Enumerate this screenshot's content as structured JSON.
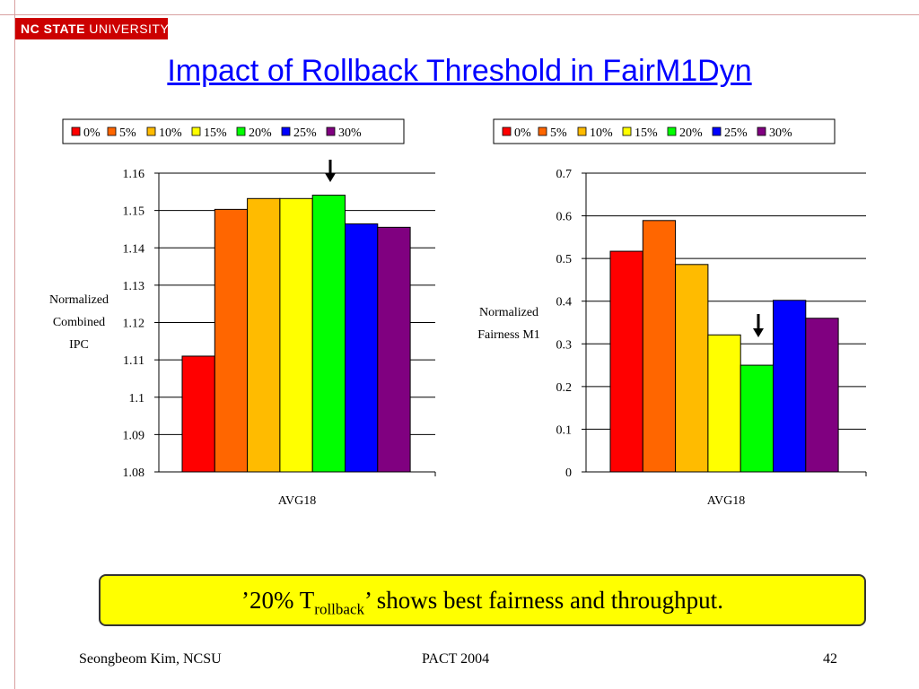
{
  "header": {
    "logo_bold": "NC STATE",
    "logo_rest": " UNIVERSITY",
    "title": "Impact of Rollback Threshold in FairM1Dyn"
  },
  "legend_labels": [
    "0%",
    "5%",
    "10%",
    "15%",
    "20%",
    "25%",
    "30%"
  ],
  "series_colors": [
    "#ff0000",
    "#ff6600",
    "#ffbb00",
    "#ffff00",
    "#00ff00",
    "#0000ff",
    "#800080"
  ],
  "chart_data": [
    {
      "type": "bar",
      "categories": [
        "AVG18"
      ],
      "series": [
        {
          "name": "0%",
          "values": [
            1.111
          ]
        },
        {
          "name": "5%",
          "values": [
            1.1503
          ]
        },
        {
          "name": "10%",
          "values": [
            1.1532
          ]
        },
        {
          "name": "15%",
          "values": [
            1.1532
          ]
        },
        {
          "name": "20%",
          "values": [
            1.1541
          ]
        },
        {
          "name": "25%",
          "values": [
            1.1464
          ]
        },
        {
          "name": "30%",
          "values": [
            1.1455
          ]
        }
      ],
      "ylabel": [
        "Normalized",
        "Combined",
        "IPC"
      ],
      "ylim": [
        1.08,
        1.16
      ],
      "yticks": [
        "1.08",
        "1.09",
        "1.1",
        "1.11",
        "1.12",
        "1.13",
        "1.14",
        "1.15",
        "1.16"
      ],
      "grid": true,
      "legend": "top",
      "highlight_series": "20%"
    },
    {
      "type": "bar",
      "categories": [
        "AVG18"
      ],
      "series": [
        {
          "name": "0%",
          "values": [
            0.517
          ]
        },
        {
          "name": "5%",
          "values": [
            0.589
          ]
        },
        {
          "name": "10%",
          "values": [
            0.486
          ]
        },
        {
          "name": "15%",
          "values": [
            0.321
          ]
        },
        {
          "name": "20%",
          "values": [
            0.25
          ]
        },
        {
          "name": "25%",
          "values": [
            0.402
          ]
        },
        {
          "name": "30%",
          "values": [
            0.36
          ]
        }
      ],
      "ylabel": [
        "Normalized",
        "Fairness M1"
      ],
      "ylim": [
        0,
        0.7
      ],
      "yticks": [
        "0",
        "0.1",
        "0.2",
        "0.3",
        "0.4",
        "0.5",
        "0.6",
        "0.7"
      ],
      "grid": true,
      "legend": "top",
      "highlight_series": "20%"
    }
  ],
  "callout": {
    "before": "’20% T",
    "sub": "rollback",
    "after": "’ shows best fairness and throughput."
  },
  "footer": {
    "left": "Seongbeom Kim, NCSU",
    "center": "PACT 2004",
    "right": "42"
  }
}
